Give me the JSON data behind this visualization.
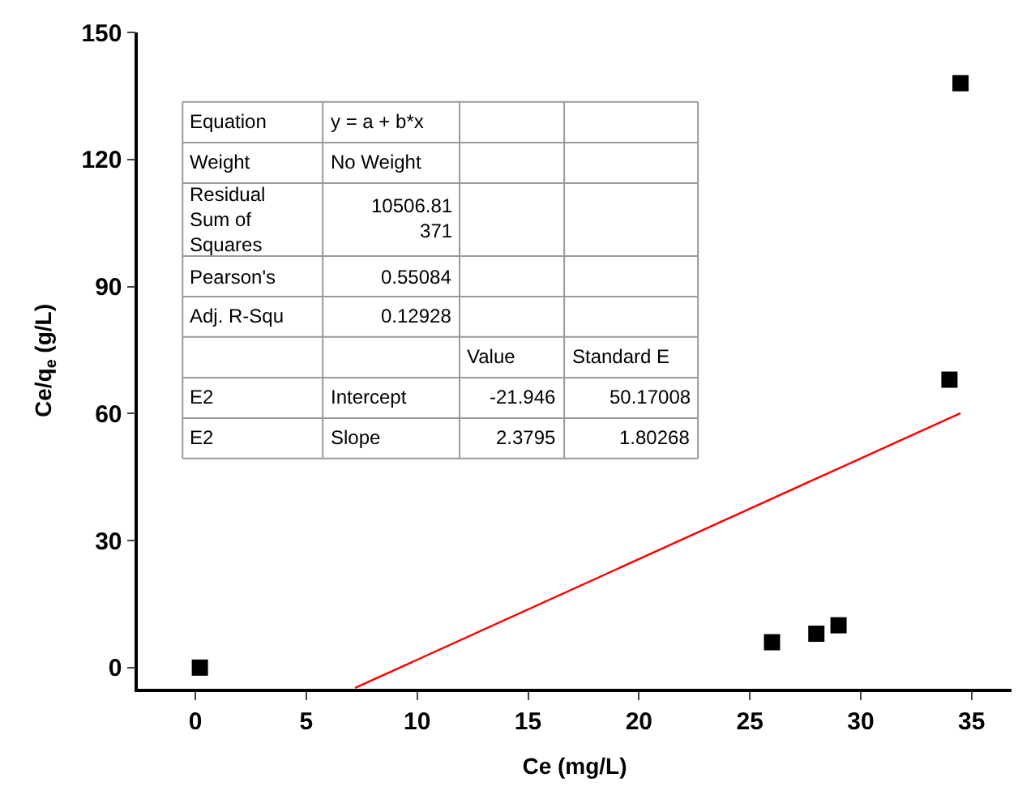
{
  "chart_data": {
    "type": "scatter",
    "xlabel": "Ce (mg/L)",
    "ylabel": "Ce/q$_{e}$ (g/L)",
    "xlim": [
      -2.6,
      36.8
    ],
    "xticks": [
      0,
      5,
      10,
      15,
      20,
      25,
      30,
      35
    ],
    "ylim": [
      -5,
      150
    ],
    "yticks": [
      0,
      30,
      60,
      90,
      120,
      150
    ],
    "marker": "square",
    "series": [
      {
        "color": "#000000",
        "x": [
          0.2,
          26,
          28,
          29,
          34,
          34.5
        ],
        "values": [
          0,
          6,
          8,
          10,
          68,
          138
        ]
      },
      {
        "type": "line",
        "color": "#ff0000",
        "line_style": "solid",
        "marker": "none",
        "x": [
          7.2,
          34.5
        ],
        "values": [
          -4.8,
          60.1
        ]
      }
    ],
    "annotations": [
      "Equation",
      "y = a + b*x",
      "Weight",
      "No Weight",
      "Residual Sum of Squares",
      "10506.81371",
      "Pearson's",
      "0.55084",
      "Adj. R-Squ",
      "0.12928",
      "Value",
      "Standard E",
      "E2",
      "Intercept",
      "-21.946",
      "50.17008",
      "E2",
      "Slope",
      "2.3795",
      "1.80268"
    ]
  }
}
